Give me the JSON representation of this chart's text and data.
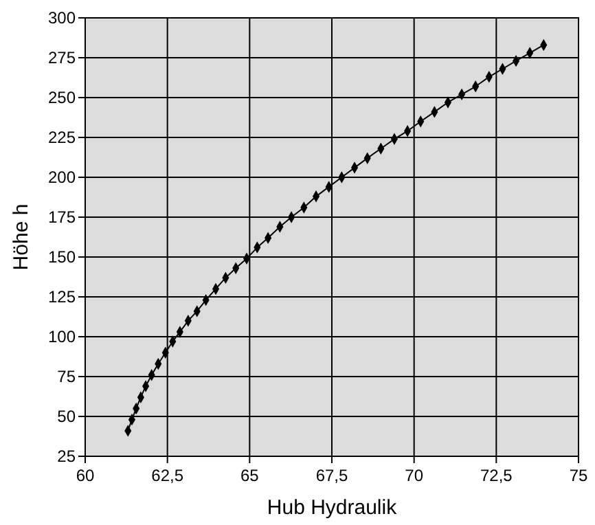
{
  "chart_data": {
    "type": "line",
    "xlabel": "Hub Hydraulik",
    "ylabel": "Höhe h",
    "x": [
      61.3,
      61.42,
      61.55,
      61.69,
      61.84,
      62.02,
      62.22,
      62.44,
      62.66,
      62.88,
      63.13,
      63.4,
      63.67,
      63.97,
      64.27,
      64.58,
      64.91,
      65.23,
      65.56,
      65.92,
      66.27,
      66.65,
      67.02,
      67.41,
      67.8,
      68.19,
      68.58,
      68.99,
      69.4,
      69.8,
      70.2,
      70.62,
      71.03,
      71.45,
      71.87,
      72.28,
      72.69,
      73.1,
      73.52,
      73.94
    ],
    "series": [
      {
        "color": "#000000",
        "values": [
          41,
          48,
          55,
          62,
          69,
          76,
          83,
          90,
          97,
          103,
          110,
          116,
          123,
          130,
          137,
          143,
          149,
          156,
          162,
          169,
          175,
          181,
          188,
          194,
          200,
          206,
          212,
          218,
          224,
          229,
          235,
          241,
          247,
          252,
          257,
          263,
          268,
          273,
          278,
          283
        ]
      }
    ],
    "xlim": [
      60,
      75
    ],
    "xticks": [
      60,
      {
        "value": 62.5,
        "label": "62,5"
      },
      65,
      {
        "value": 67.5,
        "label": "67,5"
      },
      70,
      {
        "value": 72.5,
        "label": "72,5"
      },
      75
    ],
    "ylim": [
      25,
      300
    ],
    "yticks": [
      25,
      50,
      75,
      100,
      125,
      150,
      175,
      200,
      225,
      250,
      275,
      300
    ],
    "grid": true,
    "marker": "diamond",
    "line_style": "solid"
  }
}
